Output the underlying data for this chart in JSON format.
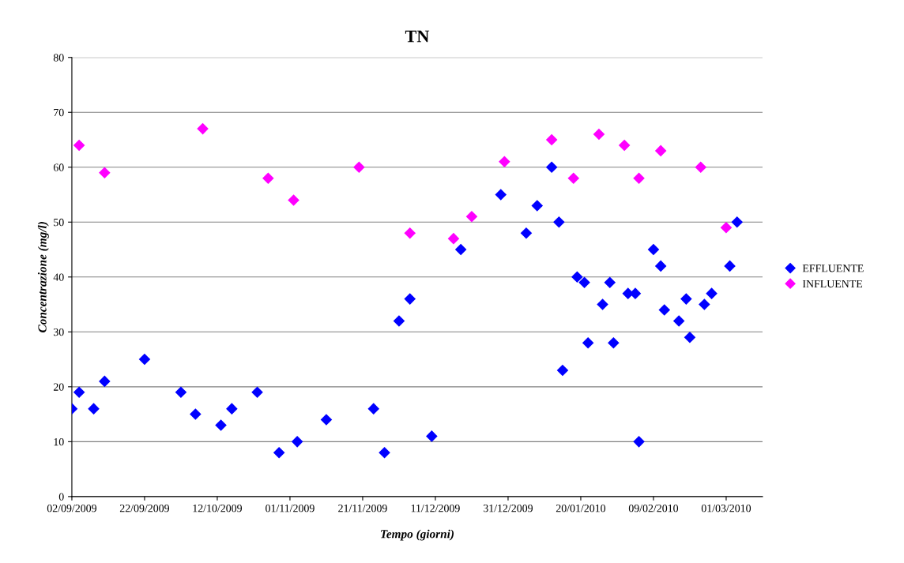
{
  "chart_data": {
    "type": "scatter",
    "title": "TN",
    "xlabel": "Tempo (giorni)",
    "ylabel": "Concentrazione (mg/l)",
    "series": [
      {
        "name": "EFFLUENTE",
        "color": "#0000ff",
        "x": [
          "2009-09-02",
          "2009-09-04",
          "2009-09-08",
          "2009-09-11",
          "2009-09-22",
          "2009-10-02",
          "2009-10-06",
          "2009-10-13",
          "2009-10-16",
          "2009-10-23",
          "2009-10-29",
          "2009-11-03",
          "2009-11-11",
          "2009-11-24",
          "2009-11-27",
          "2009-12-01",
          "2009-12-04",
          "2009-12-10",
          "2009-12-18",
          "2009-12-29",
          "2010-01-05",
          "2010-01-08",
          "2010-01-12",
          "2010-01-14",
          "2010-01-15",
          "2010-01-19",
          "2010-01-21",
          "2010-01-22",
          "2010-01-26",
          "2010-01-28",
          "2010-01-29",
          "2010-02-02",
          "2010-02-04",
          "2010-02-05",
          "2010-02-09",
          "2010-02-11",
          "2010-02-12",
          "2010-02-16",
          "2010-02-18",
          "2010-02-19",
          "2010-02-23",
          "2010-02-25",
          "2010-03-02",
          "2010-03-04"
        ],
        "values": [
          16,
          19,
          16,
          21,
          25,
          19,
          15,
          13,
          16,
          19,
          8,
          10,
          14,
          16,
          8,
          32,
          36,
          11,
          45,
          55,
          48,
          53,
          60,
          50,
          23,
          40,
          39,
          28,
          35,
          39,
          28,
          37,
          37,
          10,
          45,
          42,
          34,
          32,
          36,
          29,
          35,
          37,
          42,
          50
        ]
      },
      {
        "name": "INFLUENTE",
        "color": "#ff00ff",
        "x": [
          "2009-09-04",
          "2009-09-11",
          "2009-10-08",
          "2009-10-26",
          "2009-11-02",
          "2009-11-20",
          "2009-12-04",
          "2009-12-16",
          "2009-12-21",
          "2009-12-30",
          "2010-01-12",
          "2010-01-18",
          "2010-01-25",
          "2010-02-01",
          "2010-02-05",
          "2010-02-11",
          "2010-02-22",
          "2010-03-01"
        ],
        "values": [
          64,
          59,
          67,
          58,
          54,
          60,
          48,
          47,
          51,
          61,
          65,
          58,
          66,
          64,
          58,
          63,
          60,
          49
        ]
      }
    ],
    "marker": "diamond",
    "grid": "y",
    "legend": "right",
    "xlim": [
      "2009-09-02",
      "2010-03-11"
    ],
    "xticks": [
      {
        "value": "2009-09-02",
        "label": "02/09/2009"
      },
      {
        "value": "2009-09-22",
        "label": "22/09/2009"
      },
      {
        "value": "2009-10-12",
        "label": "12/10/2009"
      },
      {
        "value": "2009-11-01",
        "label": "01/11/2009"
      },
      {
        "value": "2009-11-21",
        "label": "21/11/2009"
      },
      {
        "value": "2009-12-11",
        "label": "11/12/2009"
      },
      {
        "value": "2009-12-31",
        "label": "31/12/2009"
      },
      {
        "value": "2010-01-20",
        "label": "20/01/2010"
      },
      {
        "value": "2010-02-09",
        "label": "09/02/2010"
      },
      {
        "value": "2010-03-01",
        "label": "01/03/2010"
      }
    ],
    "ylim": [
      0,
      80
    ],
    "yticks": [
      0,
      10,
      20,
      30,
      40,
      50,
      60,
      70,
      80
    ]
  }
}
